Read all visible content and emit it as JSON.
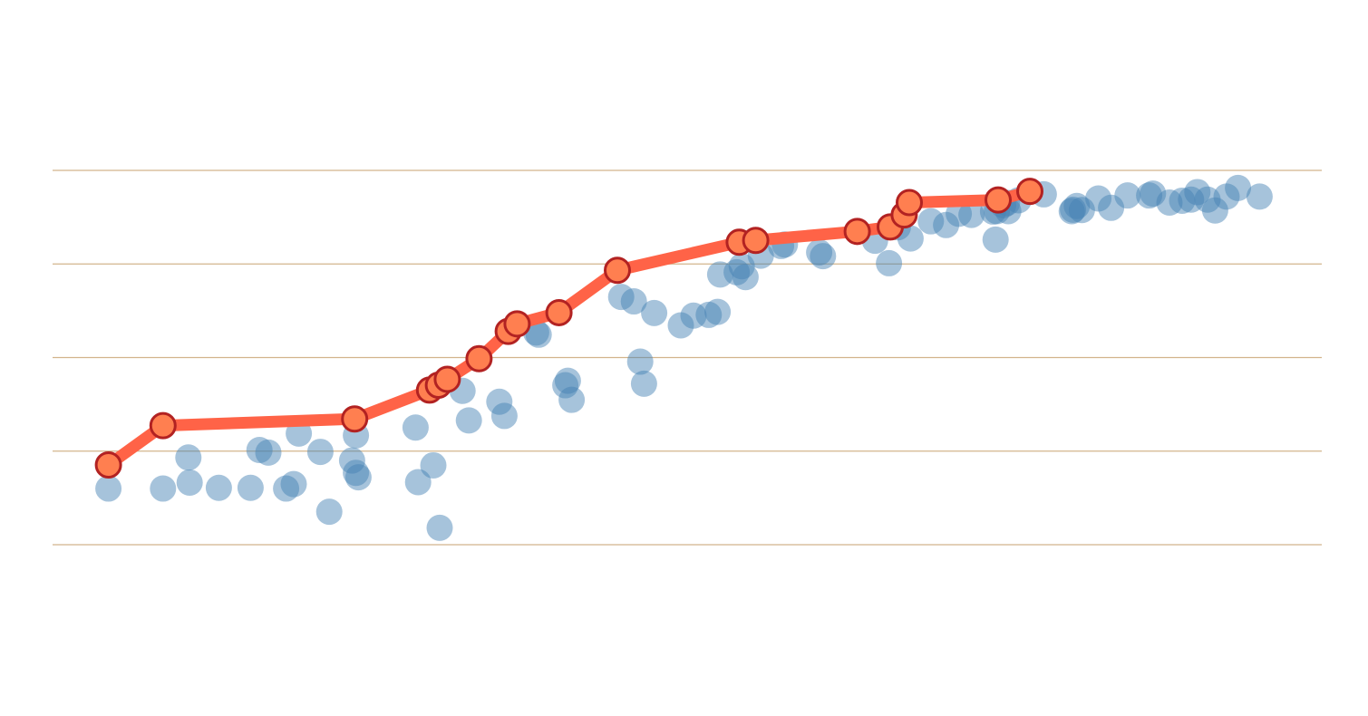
{
  "chart_data": {
    "type": "scatter",
    "title": "",
    "xlabel": "",
    "ylabel": "",
    "xlim": [
      0,
      100
    ],
    "ylim": [
      0,
      100
    ],
    "grid": true,
    "colors": {
      "scatter": "#4682b4",
      "frontier_line": "#ff6347",
      "frontier_marker": "#ff7f50",
      "frontier_outline": "#b22222",
      "grid": "#d2b48c"
    },
    "series": [
      {
        "type": "scatter",
        "points": [
          [
            4.4,
            15.0
          ],
          [
            8.7,
            15.0
          ],
          [
            10.7,
            23.3
          ],
          [
            10.8,
            16.6
          ],
          [
            13.1,
            15.2
          ],
          [
            15.6,
            15.2
          ],
          [
            16.3,
            25.3
          ],
          [
            17.0,
            24.6
          ],
          [
            18.4,
            15.0
          ],
          [
            19.0,
            16.2
          ],
          [
            19.4,
            29.7
          ],
          [
            21.1,
            24.8
          ],
          [
            21.8,
            8.8
          ],
          [
            23.6,
            22.5
          ],
          [
            23.9,
            29.2
          ],
          [
            23.9,
            19.2
          ],
          [
            24.1,
            18.0
          ],
          [
            28.6,
            31.3
          ],
          [
            28.8,
            16.7
          ],
          [
            30.0,
            21.2
          ],
          [
            30.5,
            4.5
          ],
          [
            32.3,
            41.1
          ],
          [
            32.8,
            33.2
          ],
          [
            35.2,
            38.2
          ],
          [
            35.6,
            34.4
          ],
          [
            38.1,
            56.7
          ],
          [
            38.3,
            56.1
          ],
          [
            40.4,
            42.6
          ],
          [
            40.6,
            43.8
          ],
          [
            40.9,
            38.7
          ],
          [
            44.8,
            66.2
          ],
          [
            45.8,
            65.0
          ],
          [
            46.3,
            48.9
          ],
          [
            46.6,
            43.0
          ],
          [
            47.4,
            61.9
          ],
          [
            49.5,
            58.6
          ],
          [
            50.5,
            61.2
          ],
          [
            51.7,
            61.4
          ],
          [
            52.4,
            62.2
          ],
          [
            52.6,
            72.2
          ],
          [
            53.9,
            72.8
          ],
          [
            54.3,
            74.4
          ],
          [
            54.6,
            71.5
          ],
          [
            55.8,
            77.2
          ],
          [
            57.4,
            79.8
          ],
          [
            57.7,
            80.2
          ],
          [
            60.4,
            78.1
          ],
          [
            60.7,
            77.1
          ],
          [
            64.8,
            81.2
          ],
          [
            65.9,
            75.2
          ],
          [
            66.6,
            84.8
          ],
          [
            67.6,
            81.8
          ],
          [
            69.2,
            86.4
          ],
          [
            70.4,
            85.4
          ],
          [
            71.4,
            88.4
          ],
          [
            72.4,
            88.1
          ],
          [
            74.1,
            89.0
          ],
          [
            74.3,
            81.5
          ],
          [
            74.4,
            89.1
          ],
          [
            74.9,
            90.7
          ],
          [
            75.2,
            91.3
          ],
          [
            75.3,
            89.1
          ],
          [
            76.1,
            92.0
          ],
          [
            78.1,
            93.6
          ],
          [
            80.3,
            89.1
          ],
          [
            80.4,
            89.5
          ],
          [
            80.7,
            90.5
          ],
          [
            81.1,
            89.4
          ],
          [
            82.4,
            92.5
          ],
          [
            83.4,
            90.0
          ],
          [
            84.7,
            93.3
          ],
          [
            86.4,
            93.3
          ],
          [
            86.7,
            93.8
          ],
          [
            88.0,
            91.4
          ],
          [
            89.0,
            91.9
          ],
          [
            89.7,
            92.2
          ],
          [
            90.2,
            94.2
          ],
          [
            91.0,
            92.2
          ],
          [
            91.6,
            89.3
          ],
          [
            92.5,
            93.0
          ],
          [
            93.4,
            95.3
          ],
          [
            95.1,
            93.0
          ]
        ]
      },
      {
        "type": "line",
        "points": [
          [
            4.4,
            21.3
          ],
          [
            8.7,
            31.8
          ],
          [
            23.8,
            33.6
          ],
          [
            29.7,
            41.3
          ],
          [
            30.4,
            42.6
          ],
          [
            31.1,
            44.2
          ],
          [
            33.6,
            49.7
          ],
          [
            35.9,
            57.0
          ],
          [
            36.6,
            59.0
          ],
          [
            39.9,
            62.0
          ],
          [
            44.5,
            73.3
          ],
          [
            54.1,
            80.8
          ],
          [
            55.4,
            81.3
          ],
          [
            63.4,
            83.7
          ],
          [
            66.0,
            84.9
          ],
          [
            67.1,
            88.1
          ],
          [
            67.5,
            91.4
          ],
          [
            74.5,
            92.1
          ],
          [
            77.0,
            94.4
          ]
        ]
      }
    ]
  }
}
